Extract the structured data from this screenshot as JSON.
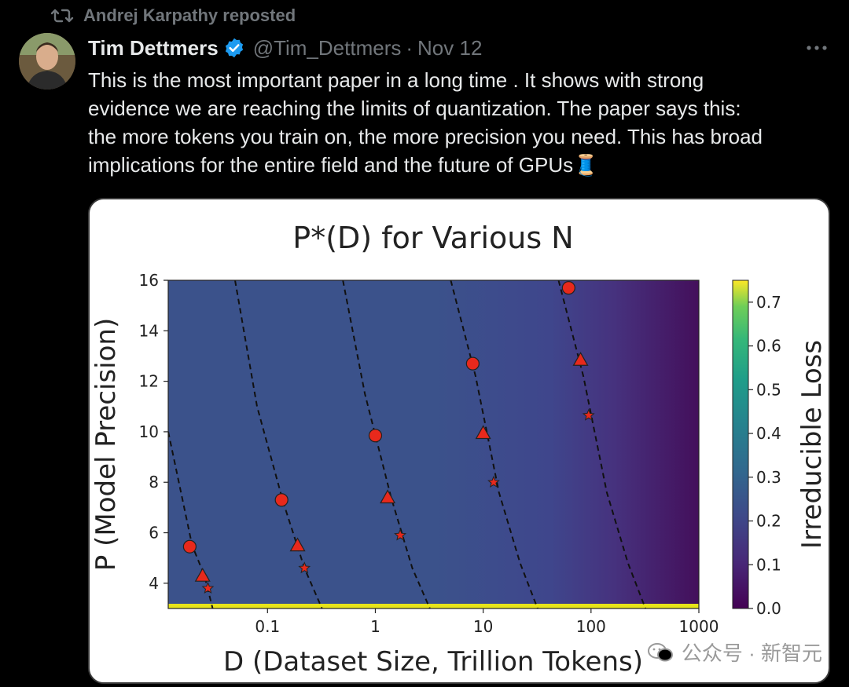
{
  "repost": {
    "icon": "repost-icon",
    "text": "Andrej Karpathy reposted"
  },
  "tweet": {
    "author_name": "Tim Dettmers",
    "verified_icon": "verified-badge-icon",
    "handle": "@Tim_Dettmers",
    "separator": "·",
    "date": "Nov 12",
    "more_icon": "more-options-icon",
    "text_lines": [
      "This is the most important paper in a long time . It shows with strong",
      "evidence we are reaching the limits of quantization. The paper says this:",
      "the more tokens you train on, the more precision you need. This has broad",
      "implications for the entire field and the future of GPUs"
    ],
    "emoji": "🧵"
  },
  "colors": {
    "background": "#000000",
    "text": "#e7e9ea",
    "muted": "#71767b",
    "verified": "#1d9bf0",
    "marker": "#e8291c"
  },
  "chart_data": {
    "type": "heatmap",
    "title": "P*(D) for Various N",
    "xlabel": "D (Dataset Size, Trillion Tokens)",
    "ylabel": "P (Model Precision)",
    "x_scale": "log",
    "x_ticks": [
      "0.1",
      "1",
      "10",
      "100",
      "1000"
    ],
    "y_ticks": [
      "4",
      "6",
      "8",
      "10",
      "12",
      "14",
      "16"
    ],
    "xlim": [
      0.012,
      1000
    ],
    "ylim": [
      3,
      16
    ],
    "colorbar": {
      "label": "Irreducible Loss",
      "ticks": [
        "0.0",
        "0.1",
        "0.2",
        "0.3",
        "0.4",
        "0.5",
        "0.6",
        "0.7"
      ],
      "range": [
        0,
        0.75
      ],
      "colormap": "viridis"
    },
    "grid": false,
    "curves": [
      {
        "points": [
          [
            0.012,
            10
          ],
          [
            0.02,
            5.5
          ],
          [
            0.026,
            4.3
          ],
          [
            0.031,
            3.0
          ]
        ],
        "markers": [
          {
            "shape": "circle",
            "x": 0.019,
            "y": 5.45
          },
          {
            "shape": "triangle",
            "x": 0.025,
            "y": 4.3
          },
          {
            "shape": "star",
            "x": 0.028,
            "y": 3.8
          }
        ]
      },
      {
        "points": [
          [
            0.05,
            16
          ],
          [
            0.08,
            11
          ],
          [
            0.14,
            7.2
          ],
          [
            0.22,
            4.6
          ],
          [
            0.32,
            3.0
          ]
        ],
        "markers": [
          {
            "shape": "circle",
            "x": 0.135,
            "y": 7.3
          },
          {
            "shape": "triangle",
            "x": 0.19,
            "y": 5.5
          },
          {
            "shape": "star",
            "x": 0.22,
            "y": 4.6
          }
        ]
      },
      {
        "points": [
          [
            0.5,
            16
          ],
          [
            0.8,
            11.5
          ],
          [
            1.4,
            7.4
          ],
          [
            2.2,
            4.6
          ],
          [
            3.2,
            3.0
          ]
        ],
        "markers": [
          {
            "shape": "circle",
            "x": 1.0,
            "y": 9.85
          },
          {
            "shape": "triangle",
            "x": 1.3,
            "y": 7.4
          },
          {
            "shape": "star",
            "x": 1.7,
            "y": 5.9
          }
        ]
      },
      {
        "points": [
          [
            5,
            16
          ],
          [
            8.5,
            12.2
          ],
          [
            14,
            7.6
          ],
          [
            22,
            4.8
          ],
          [
            32,
            3.0
          ]
        ],
        "markers": [
          {
            "shape": "circle",
            "x": 8.0,
            "y": 12.7
          },
          {
            "shape": "triangle",
            "x": 10.0,
            "y": 9.95
          },
          {
            "shape": "star",
            "x": 12.5,
            "y": 8.0
          }
        ]
      },
      {
        "points": [
          [
            50,
            16
          ],
          [
            85,
            12.2
          ],
          [
            140,
            7.6
          ],
          [
            220,
            4.8
          ],
          [
            320,
            3.0
          ]
        ],
        "markers": [
          {
            "shape": "circle",
            "x": 62,
            "y": 15.7
          },
          {
            "shape": "triangle",
            "x": 80,
            "y": 12.85
          },
          {
            "shape": "star",
            "x": 95,
            "y": 10.65
          }
        ]
      }
    ]
  },
  "watermark": {
    "text": "公众号 · 新智元",
    "icon": "wechat-icon"
  }
}
